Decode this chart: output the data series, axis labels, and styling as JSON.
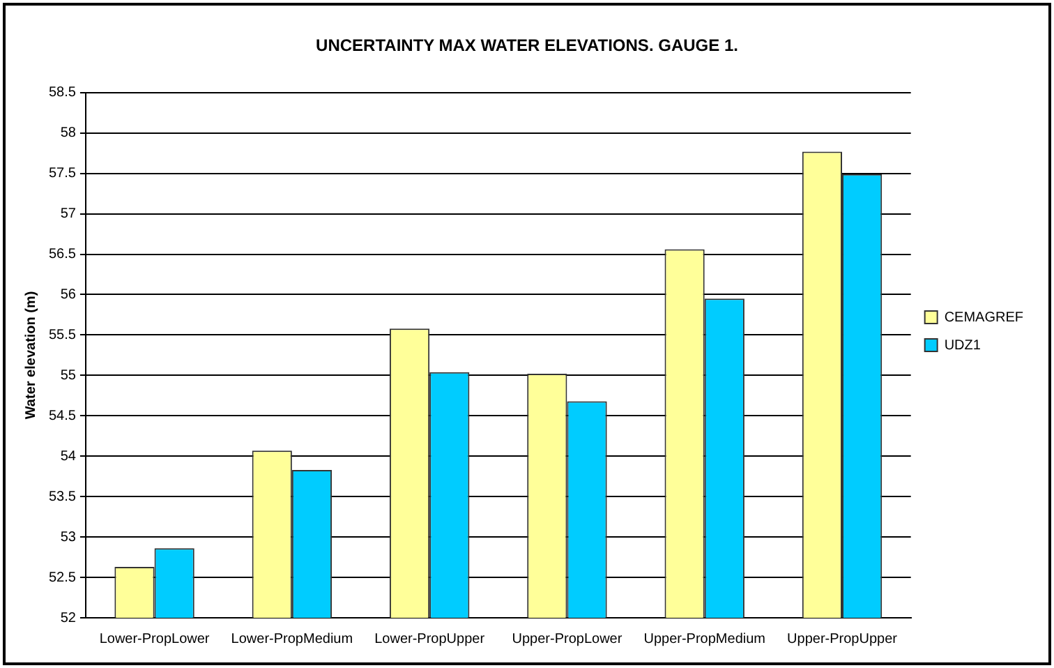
{
  "chart_data": {
    "type": "bar",
    "title": "UNCERTAINTY MAX WATER ELEVATIONS. GAUGE 1.",
    "ylabel": "Water elevation (m)",
    "categories": [
      "Lower-PropLower",
      "Lower-PropMedium",
      "Lower-PropUpper",
      "Upper-PropLower",
      "Upper-PropMedium",
      "Upper-PropUpper"
    ],
    "series": [
      {
        "name": "CEMAGREF",
        "color": "#ffff99",
        "values": [
          52.63,
          54.07,
          55.58,
          55.02,
          56.56,
          57.77
        ]
      },
      {
        "name": "UDZ1",
        "color": "#00ccff",
        "values": [
          52.86,
          53.83,
          55.04,
          54.68,
          55.95,
          57.49
        ]
      }
    ],
    "ylim": [
      52,
      58.5
    ],
    "yticks": [
      52,
      52.5,
      53,
      53.5,
      54,
      54.5,
      55,
      55.5,
      56,
      56.5,
      57,
      57.5,
      58,
      58.5
    ],
    "grid": "y",
    "legend": "right"
  }
}
